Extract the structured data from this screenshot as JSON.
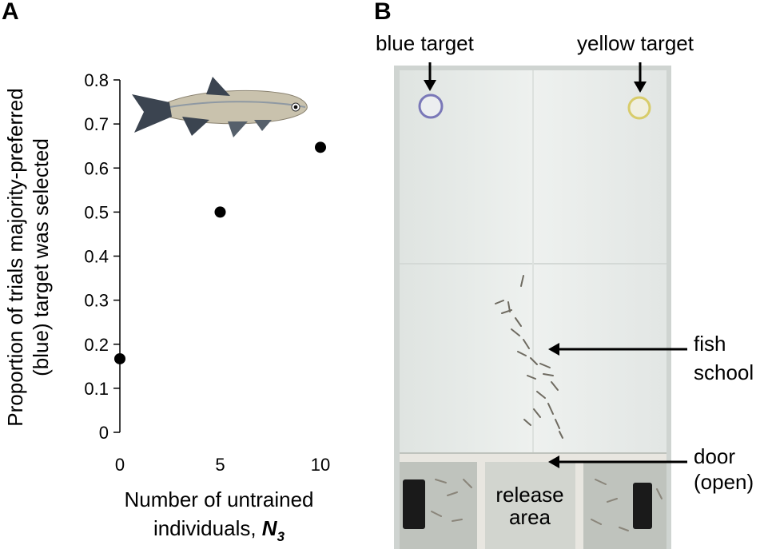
{
  "panels": {
    "a": "A",
    "b": "B"
  },
  "chart_data": {
    "type": "scatter",
    "x": [
      0,
      5,
      10
    ],
    "y": [
      0.167,
      0.5,
      0.647
    ],
    "xlabel_line1": "Number of untrained",
    "xlabel_line2": "individuals, ",
    "xlabel_symbol": "N",
    "xlabel_subscript": "3",
    "ylabel_line1": "Proportion of trials majority-preferred",
    "ylabel_line2": "(blue) target was selected",
    "xticks": [
      "0",
      "5",
      "10"
    ],
    "yticks": [
      "0",
      "0.1",
      "0.2",
      "0.3",
      "0.4",
      "0.5",
      "0.6",
      "0.7",
      "0.8"
    ],
    "xlim": [
      0,
      10
    ],
    "ylim": [
      0,
      0.8
    ],
    "marker_color": "#000000"
  },
  "photo": {
    "blue_target_label": "blue target",
    "yellow_target_label": "yellow target",
    "fish_school_label": "fish school",
    "door_label": "door (open)",
    "release_area_label": "release area",
    "blue_target_color": "#7a78b8",
    "yellow_target_color": "#d8cc6a"
  }
}
